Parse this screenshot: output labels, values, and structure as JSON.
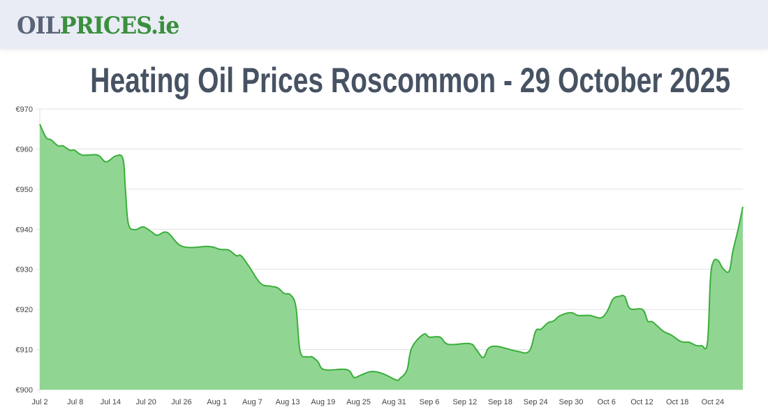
{
  "header": {
    "logo_part1": "OIL",
    "logo_part2": "PRICES.ie"
  },
  "page": {
    "title": "Heating Oil Prices Roscommon - 29 October 2025"
  },
  "colors": {
    "header_bg": "#e9ecf4",
    "logo_grey": "#5a6478",
    "logo_green": "#3a8f3e",
    "title": "#475263",
    "line": "#3aae3a",
    "fill": "#90d692",
    "grid": "#e0e0e0"
  },
  "chart_data": {
    "type": "area",
    "title": "Heating Oil Prices Roscommon - 29 October 2025",
    "xlabel": "",
    "ylabel": "",
    "ylim": [
      900,
      970
    ],
    "y_ticks": [
      "€900",
      "€910",
      "€920",
      "€930",
      "€940",
      "€950",
      "€960",
      "€970"
    ],
    "y_tick_values": [
      900,
      910,
      920,
      930,
      940,
      950,
      960,
      970
    ],
    "x_tick_labels": [
      "Jul 2",
      "Jul 8",
      "Jul 14",
      "Jul 20",
      "Jul 26",
      "Aug 1",
      "Aug 7",
      "Aug 13",
      "Aug 19",
      "Aug 25",
      "Aug 31",
      "Sep 6",
      "Sep 12",
      "Sep 18",
      "Sep 24",
      "Sep 30",
      "Oct 6",
      "Oct 12",
      "Oct 18",
      "Oct 24"
    ],
    "x_tick_day_offsets": [
      0,
      6,
      12,
      18,
      24,
      30,
      36,
      42,
      48,
      54,
      60,
      66,
      72,
      78,
      84,
      90,
      96,
      102,
      108,
      114
    ],
    "x_range_days": [
      0,
      119.1
    ],
    "x_start_date": "Jul 2",
    "grid": true,
    "legend": "none",
    "series": [
      {
        "name": "Heating Oil Price (€)",
        "points": [
          [
            0,
            966.2
          ],
          [
            1.06,
            962.9
          ],
          [
            1.9,
            962.3
          ],
          [
            3.1,
            960.8
          ],
          [
            3.9,
            960.8
          ],
          [
            5.1,
            959.7
          ],
          [
            5.9,
            959.7
          ],
          [
            7.2,
            958.5
          ],
          [
            9.8,
            958.5
          ],
          [
            11.2,
            956.8
          ],
          [
            12.9,
            958.3
          ],
          [
            14.1,
            957.5
          ],
          [
            14.5,
            950
          ],
          [
            15.0,
            941.4
          ],
          [
            16.1,
            939.9
          ],
          [
            17.5,
            940.6
          ],
          [
            18.9,
            939.4
          ],
          [
            19.9,
            938.5
          ],
          [
            21.6,
            939.2
          ],
          [
            24.2,
            935.7
          ],
          [
            28.7,
            935.7
          ],
          [
            30.5,
            935.0
          ],
          [
            32.0,
            934.8
          ],
          [
            33.3,
            933.4
          ],
          [
            34.1,
            933.4
          ],
          [
            35.5,
            930.6
          ],
          [
            37.4,
            926.5
          ],
          [
            39.1,
            925.8
          ],
          [
            40.3,
            925.4
          ],
          [
            41.4,
            924.0
          ],
          [
            42.5,
            923.6
          ],
          [
            43.4,
            920.5
          ],
          [
            44.1,
            909.6
          ],
          [
            45.3,
            908.2
          ],
          [
            46.1,
            908.2
          ],
          [
            47.1,
            907.0
          ],
          [
            48.2,
            905.0
          ],
          [
            52.0,
            905.0
          ],
          [
            53.2,
            903.1
          ],
          [
            54.2,
            903.5
          ],
          [
            56.1,
            904.5
          ],
          [
            58.1,
            904.0
          ],
          [
            60.4,
            902.4
          ],
          [
            61.0,
            902.8
          ],
          [
            62.2,
            904.9
          ],
          [
            63.0,
            910.4
          ],
          [
            65.0,
            913.8
          ],
          [
            66.0,
            913.1
          ],
          [
            67.8,
            913.1
          ],
          [
            69.2,
            911.3
          ],
          [
            72.8,
            911.5
          ],
          [
            73.9,
            910.1
          ],
          [
            75.1,
            908.0
          ],
          [
            76.0,
            910.3
          ],
          [
            77.5,
            910.8
          ],
          [
            80.8,
            909.6
          ],
          [
            82.9,
            909.6
          ],
          [
            84.0,
            914.6
          ],
          [
            84.9,
            915.1
          ],
          [
            86.1,
            916.7
          ],
          [
            87.0,
            917.1
          ],
          [
            88.2,
            918.5
          ],
          [
            90.0,
            919.2
          ],
          [
            91.2,
            918.5
          ],
          [
            93.2,
            918.5
          ],
          [
            95.0,
            917.9
          ],
          [
            96.1,
            919.5
          ],
          [
            97.1,
            922.6
          ],
          [
            98.2,
            923.3
          ],
          [
            99.1,
            923.2
          ],
          [
            100.0,
            920.2
          ],
          [
            102.1,
            920.0
          ],
          [
            103.0,
            917.1
          ],
          [
            103.8,
            916.9
          ],
          [
            105.6,
            914.6
          ],
          [
            107.0,
            913.6
          ],
          [
            108.6,
            912.0
          ],
          [
            110.0,
            911.8
          ],
          [
            111.2,
            911.0
          ],
          [
            112.1,
            911.0
          ],
          [
            113.1,
            911.7
          ],
          [
            113.6,
            927.5
          ],
          [
            114.1,
            931.9
          ],
          [
            114.9,
            932.2
          ],
          [
            115.8,
            930.1
          ],
          [
            116.8,
            929.6
          ],
          [
            117.4,
            934.5
          ],
          [
            118.3,
            940.0
          ],
          [
            119.1,
            945.6
          ]
        ]
      }
    ]
  }
}
